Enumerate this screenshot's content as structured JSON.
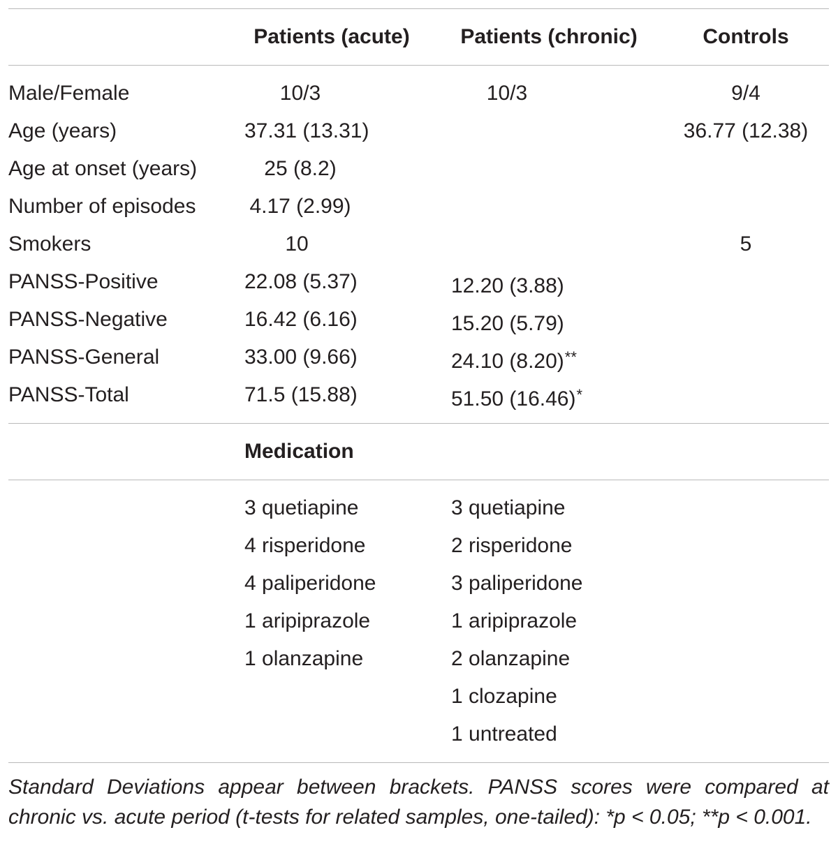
{
  "columns": {
    "label": "",
    "acute": "Patients (acute)",
    "chronic": "Patients (chronic)",
    "controls": "Controls"
  },
  "rows": [
    {
      "label": "Male/Female",
      "acute": "10/3",
      "chronic": "10/3",
      "chronic_sig": "",
      "controls": "9/4"
    },
    {
      "label": "Age (years)",
      "acute": "37.31 (13.31)",
      "chronic": "",
      "chronic_sig": "",
      "controls": "36.77 (12.38)"
    },
    {
      "label": "Age at onset (years)",
      "acute": "25 (8.2)",
      "chronic": "",
      "chronic_sig": "",
      "controls": ""
    },
    {
      "label": "Number of episodes",
      "acute": "4.17 (2.99)",
      "chronic": "",
      "chronic_sig": "",
      "controls": ""
    },
    {
      "label": "Smokers",
      "acute": "10",
      "chronic": "",
      "chronic_sig": "",
      "controls": "5"
    },
    {
      "label": "PANSS-Positive",
      "acute": "22.08 (5.37)",
      "chronic": "12.20 (3.88)",
      "chronic_sig": "",
      "controls": ""
    },
    {
      "label": "PANSS-Negative",
      "acute": "16.42 (6.16)",
      "chronic": "15.20 (5.79)",
      "chronic_sig": "",
      "controls": ""
    },
    {
      "label": "PANSS-General",
      "acute": "33.00 (9.66)",
      "chronic": "24.10 (8.20)",
      "chronic_sig": "**",
      "controls": ""
    },
    {
      "label": "PANSS-Total",
      "acute": "71.5 (15.88)",
      "chronic": "51.50 (16.46)",
      "chronic_sig": "*",
      "controls": ""
    }
  ],
  "medication": {
    "heading": "Medication",
    "acute": [
      "3 quetiapine",
      "4 risperidone",
      "4 paliperidone",
      "1 aripiprazole",
      "1 olanzapine"
    ],
    "chronic": [
      "3 quetiapine",
      "2 risperidone",
      "3 paliperidone",
      "1 aripiprazole",
      "2 olanzapine",
      "1 clozapine",
      "1 untreated"
    ]
  },
  "footnote": "Standard Deviations appear between brackets. PANSS scores were compared at chronic vs. acute period (t-tests for related samples, one-tailed): *p < 0.05; **p < 0.001."
}
